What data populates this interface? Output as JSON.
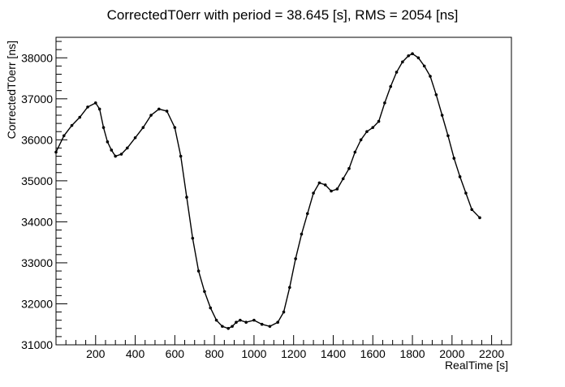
{
  "chart_data": {
    "type": "line",
    "title": "CorrectedT0err with period = 38.645 [s], RMS = 2054 [ns]",
    "xlabel": "RealTime [s]",
    "ylabel": "CorrectedT0err [ns]",
    "xlim": [
      0,
      2300
    ],
    "ylim": [
      31000,
      38500
    ],
    "x_ticks": [
      200,
      400,
      600,
      800,
      1000,
      1200,
      1400,
      1600,
      1800,
      2000,
      2200
    ],
    "y_ticks": [
      31000,
      32000,
      33000,
      34000,
      35000,
      36000,
      37000,
      38000
    ],
    "grid": false,
    "legend": "none",
    "colors": {
      "line": "#000000",
      "axis": "#000000",
      "background": "#ffffff"
    },
    "series": [
      {
        "x": [
          0,
          40,
          80,
          120,
          160,
          200,
          220,
          240,
          260,
          280,
          300,
          330,
          360,
          400,
          440,
          480,
          520,
          560,
          600,
          630,
          660,
          690,
          720,
          750,
          780,
          810,
          840,
          870,
          890,
          910,
          930,
          960,
          1000,
          1040,
          1080,
          1120,
          1150,
          1180,
          1210,
          1240,
          1270,
          1300,
          1330,
          1360,
          1390,
          1420,
          1450,
          1480,
          1510,
          1540,
          1570,
          1600,
          1630,
          1660,
          1690,
          1720,
          1750,
          1780,
          1800,
          1830,
          1860,
          1890,
          1920,
          1950,
          1980,
          2010,
          2040,
          2070,
          2100,
          2140
        ],
        "y": [
          35700,
          36100,
          36350,
          36550,
          36800,
          36900,
          36750,
          36300,
          35950,
          35750,
          35600,
          35650,
          35800,
          36050,
          36300,
          36600,
          36750,
          36700,
          36300,
          35600,
          34600,
          33600,
          32800,
          32300,
          31900,
          31600,
          31450,
          31400,
          31450,
          31550,
          31600,
          31550,
          31600,
          31500,
          31450,
          31550,
          31800,
          32400,
          33100,
          33700,
          34200,
          34700,
          34950,
          34900,
          34750,
          34800,
          35050,
          35300,
          35700,
          36000,
          36200,
          36300,
          36450,
          36900,
          37300,
          37650,
          37900,
          38050,
          38100,
          38000,
          37800,
          37550,
          37100,
          36600,
          36100,
          35550,
          35100,
          34700,
          34300,
          34100
        ]
      }
    ]
  }
}
